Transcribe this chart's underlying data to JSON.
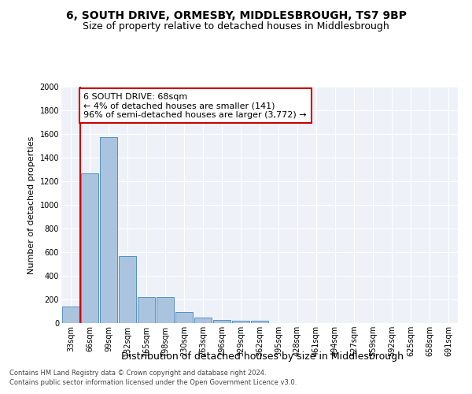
{
  "title": "6, SOUTH DRIVE, ORMESBY, MIDDLESBROUGH, TS7 9BP",
  "subtitle": "Size of property relative to detached houses in Middlesbrough",
  "xlabel": "Distribution of detached houses by size in Middlesbrough",
  "ylabel": "Number of detached properties",
  "footer_line1": "Contains HM Land Registry data © Crown copyright and database right 2024.",
  "footer_line2": "Contains public sector information licensed under the Open Government Licence v3.0.",
  "categories": [
    "33sqm",
    "66sqm",
    "99sqm",
    "132sqm",
    "165sqm",
    "198sqm",
    "230sqm",
    "263sqm",
    "296sqm",
    "329sqm",
    "362sqm",
    "395sqm",
    "428sqm",
    "461sqm",
    "494sqm",
    "527sqm",
    "559sqm",
    "592sqm",
    "625sqm",
    "658sqm",
    "691sqm"
  ],
  "values": [
    140,
    1270,
    1575,
    565,
    220,
    220,
    95,
    50,
    28,
    18,
    18,
    0,
    0,
    0,
    0,
    0,
    0,
    0,
    0,
    0,
    0
  ],
  "bar_color": "#aac4e0",
  "bar_edge_color": "#5590c0",
  "annotation_line1": "6 SOUTH DRIVE: 68sqm",
  "annotation_line2": "← 4% of detached houses are smaller (141)",
  "annotation_line3": "96% of semi-detached houses are larger (3,772) →",
  "annotation_box_color": "#cc0000",
  "vline_x": 0.5,
  "ylim": [
    0,
    2000
  ],
  "yticks": [
    0,
    200,
    400,
    600,
    800,
    1000,
    1200,
    1400,
    1600,
    1800,
    2000
  ],
  "bg_color": "#eef2f8",
  "grid_color": "#ffffff",
  "title_fontsize": 10,
  "subtitle_fontsize": 9,
  "xlabel_fontsize": 9,
  "ylabel_fontsize": 8,
  "tick_fontsize": 7,
  "footer_fontsize": 6,
  "annotation_fontsize": 8
}
